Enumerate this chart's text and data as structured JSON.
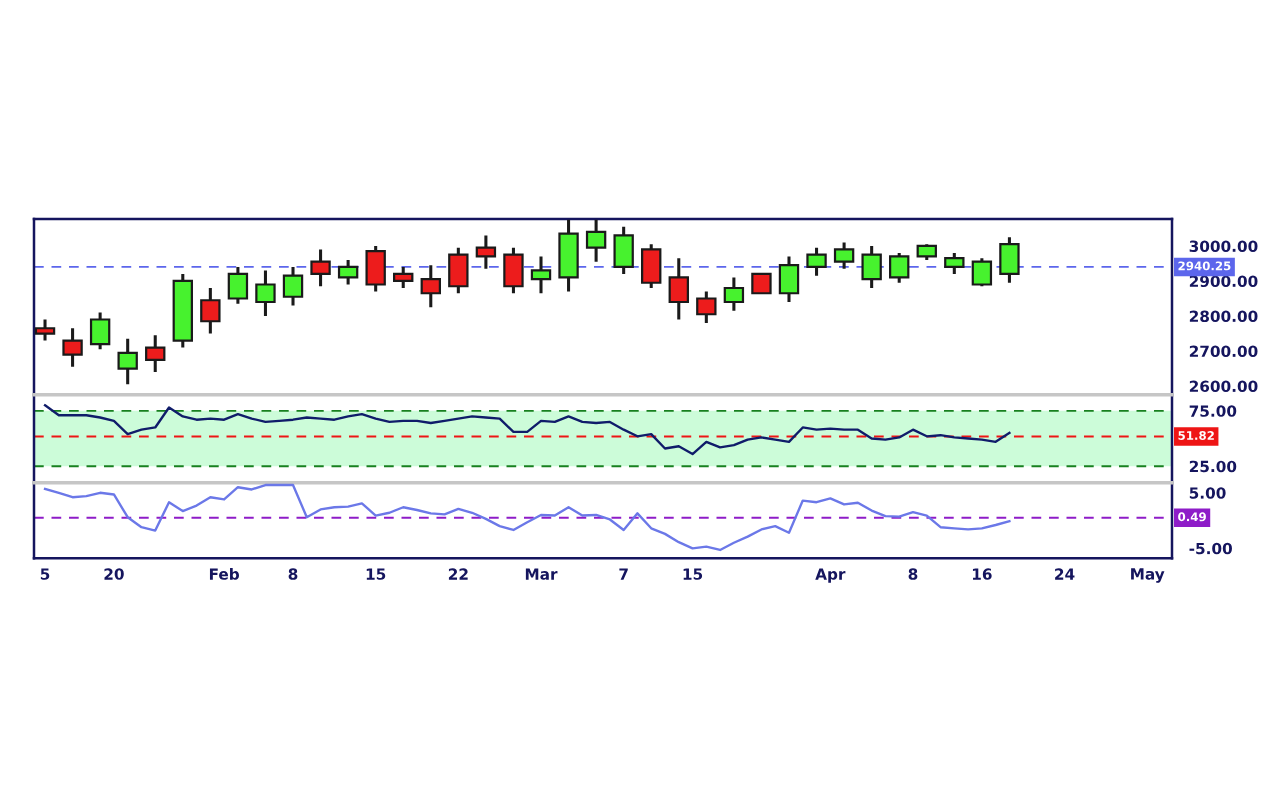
{
  "chart_data": [
    {
      "type": "candlestick",
      "categories": [
        "5",
        null,
        null,
        null,
        null,
        "20",
        null,
        null,
        null,
        null,
        null,
        null,
        null,
        "Feb",
        null,
        null,
        null,
        null,
        "8",
        null,
        null,
        null,
        null,
        null,
        "15",
        null,
        null,
        null,
        null,
        null,
        "22",
        null,
        null,
        null,
        null,
        null,
        "Mar",
        null,
        null,
        null,
        null,
        null,
        "7",
        null,
        null,
        null,
        null,
        "15",
        null,
        null,
        null,
        null,
        null,
        null,
        null,
        null,
        null,
        "Apr",
        null,
        null,
        null,
        null,
        null,
        "8",
        null,
        null,
        null,
        null,
        "16",
        null,
        null,
        null,
        null,
        null,
        "24",
        null,
        null,
        null,
        null,
        null,
        "May",
        null
      ],
      "ohlc": [
        [
          2765,
          2790,
          2730,
          2750
        ],
        null,
        [
          2730,
          2765,
          2655,
          2690
        ],
        null,
        [
          2720,
          2810,
          2705,
          2790
        ],
        null,
        [
          2650,
          2735,
          2605,
          2695
        ],
        null,
        [
          2710,
          2745,
          2640,
          2675
        ],
        null,
        [
          2730,
          2920,
          2710,
          2900
        ],
        null,
        [
          2845,
          2880,
          2750,
          2785
        ],
        null,
        [
          2850,
          2940,
          2835,
          2920
        ],
        null,
        [
          2840,
          2930,
          2800,
          2890
        ],
        null,
        [
          2855,
          2940,
          2830,
          2915
        ],
        null,
        [
          2955,
          2990,
          2885,
          2920
        ],
        null,
        [
          2910,
          2960,
          2890,
          2940
        ],
        null,
        [
          2985,
          3000,
          2870,
          2890
        ],
        null,
        [
          2920,
          2940,
          2880,
          2900
        ],
        null,
        [
          2905,
          2945,
          2825,
          2865
        ],
        null,
        [
          2975,
          2995,
          2865,
          2885
        ],
        null,
        [
          2995,
          3030,
          2935,
          2970
        ],
        null,
        [
          2975,
          2995,
          2865,
          2885
        ],
        null,
        [
          2905,
          2970,
          2865,
          2930
        ],
        null,
        [
          2910,
          3075,
          2870,
          3035
        ],
        null,
        [
          2995,
          3075,
          2955,
          3040
        ],
        null,
        [
          2940,
          3055,
          2920,
          3030
        ],
        null,
        [
          2990,
          3005,
          2880,
          2895
        ],
        null,
        [
          2910,
          2965,
          2790,
          2840
        ],
        null,
        [
          2850,
          2870,
          2780,
          2805
        ],
        null,
        [
          2840,
          2910,
          2815,
          2880
        ],
        null,
        [
          2920,
          2920,
          2865,
          2865
        ],
        null,
        [
          2865,
          2970,
          2840,
          2945
        ],
        null,
        [
          2940,
          2995,
          2915,
          2975
        ],
        null,
        [
          2955,
          3010,
          2935,
          2990
        ],
        null,
        [
          2905,
          3000,
          2880,
          2975
        ],
        null,
        [
          2910,
          2980,
          2895,
          2970
        ],
        null,
        [
          2970,
          3005,
          2960,
          3000
        ],
        null,
        [
          2940,
          2980,
          2920,
          2965
        ],
        null,
        [
          2890,
          2965,
          2885,
          2955
        ],
        null,
        [
          2920,
          3025,
          2895,
          3005
        ],
        null,
        null,
        null,
        null,
        null,
        null,
        null,
        null,
        null,
        null,
        null
      ],
      "colors": [
        "#ed1c1c",
        null,
        "#ed1c1c",
        null,
        "#47f22e",
        null,
        "#47f22e",
        null,
        "#ed1c1c",
        null,
        "#47f22e",
        null,
        "#ed1c1c",
        null,
        "#47f22e",
        null,
        "#47f22e",
        null,
        "#47f22e",
        null,
        "#ed1c1c",
        null,
        "#47f22e",
        null,
        "#ed1c1c",
        null,
        "#ed1c1c",
        null,
        "#ed1c1c",
        null,
        "#ed1c1c",
        null,
        "#ed1c1c",
        null,
        "#ed1c1c",
        null,
        "#47f22e",
        null,
        "#47f22e",
        null,
        "#47f22e",
        null,
        "#47f22e",
        null,
        "#ed1c1c",
        null,
        "#ed1c1c",
        null,
        "#ed1c1c",
        null,
        "#47f22e",
        null,
        "#ed1c1c",
        null,
        "#47f22e",
        null,
        "#47f22e",
        null,
        "#47f22e",
        null,
        "#47f22e",
        null,
        "#47f22e",
        null,
        "#47f22e",
        null,
        "#47f22e",
        null,
        "#47f22e",
        null,
        "#47f22e",
        null,
        null,
        null,
        null,
        null,
        null,
        null,
        null,
        null,
        null,
        null
      ],
      "ylim": [
        2575,
        3077
      ],
      "yticks": [
        {
          "value": 2600,
          "label": "2600.00"
        },
        {
          "value": 2700,
          "label": "2700.00"
        },
        {
          "value": 2800,
          "label": "2800.00"
        },
        {
          "value": 2900,
          "label": "2900.00"
        },
        {
          "value": 3000,
          "label": "3000.00"
        }
      ],
      "tick_labels": "y",
      "ref_lines": [
        {
          "axis": "y",
          "value": 2940.25,
          "label": "2940.25",
          "color": "#5c66ec",
          "line_style": "dashed"
        }
      ]
    },
    {
      "type": "line",
      "categories": [
        "5",
        null,
        null,
        null,
        null,
        "20",
        null,
        null,
        null,
        null,
        null,
        null,
        null,
        "Feb",
        null,
        null,
        null,
        null,
        "8",
        null,
        null,
        null,
        null,
        null,
        "15",
        null,
        null,
        null,
        null,
        null,
        "22",
        null,
        null,
        null,
        null,
        null,
        "Mar",
        null,
        null,
        null,
        null,
        null,
        "7",
        null,
        null,
        null,
        null,
        "15",
        null,
        null,
        null,
        null,
        null,
        null,
        null,
        null,
        null,
        "Apr",
        null,
        null,
        null,
        null,
        null,
        "8",
        null,
        null,
        null,
        null,
        "16",
        null,
        null,
        null,
        null,
        null,
        "24",
        null,
        null,
        null,
        null,
        null,
        "May",
        null
      ],
      "values": [
        80,
        71,
        71,
        71,
        69,
        66,
        54,
        58,
        60,
        78,
        70,
        67,
        68,
        67,
        72,
        68,
        65,
        66,
        67,
        69,
        68,
        67,
        70,
        72,
        68,
        65,
        66,
        66,
        64,
        66,
        68,
        70,
        69,
        68,
        56,
        56,
        66,
        65,
        70,
        65,
        64,
        65,
        58,
        52,
        54,
        41,
        43,
        36,
        47,
        42,
        44,
        49,
        51,
        49,
        47,
        60,
        58,
        59,
        58,
        58,
        50,
        49,
        51,
        58,
        52,
        53,
        51,
        50,
        49,
        47,
        55,
        null,
        null,
        null,
        null,
        null,
        null,
        null,
        null,
        null,
        null,
        null
      ],
      "color": "#101c6a",
      "ylim": [
        10,
        89.5
      ],
      "yticks": [
        {
          "value": 25,
          "label": "25.00"
        },
        {
          "value": 75,
          "label": "75.00"
        }
      ],
      "tick_labels": "y",
      "bands": [
        {
          "axis": "y",
          "from": 25,
          "to": 75,
          "color": "#ccfcd9"
        }
      ],
      "ref_lines": [
        {
          "axis": "y",
          "value": 75,
          "color": "#17801f",
          "line_style": "dashed"
        },
        {
          "axis": "y",
          "value": 25,
          "color": "#17801f",
          "line_style": "dashed"
        },
        {
          "axis": "y",
          "value": 51.82,
          "label": "51.82",
          "color": "#ee1515",
          "line_style": "dashed"
        }
      ]
    },
    {
      "type": "line",
      "categories": [
        "5",
        null,
        null,
        null,
        null,
        "20",
        null,
        null,
        null,
        null,
        null,
        null,
        null,
        "Feb",
        null,
        null,
        null,
        null,
        "8",
        null,
        null,
        null,
        null,
        null,
        "15",
        null,
        null,
        null,
        null,
        null,
        "22",
        null,
        null,
        null,
        null,
        null,
        "Mar",
        null,
        null,
        null,
        null,
        null,
        "7",
        null,
        null,
        null,
        null,
        "15",
        null,
        null,
        null,
        null,
        null,
        null,
        null,
        null,
        null,
        "Apr",
        null,
        null,
        null,
        null,
        null,
        "8",
        null,
        null,
        null,
        null,
        "16",
        null,
        null,
        null,
        null,
        null,
        "24",
        null,
        null,
        null,
        null,
        null,
        "May",
        null
      ],
      "values": [
        5.7,
        5.0,
        4.2,
        4.4,
        5.0,
        4.7,
        0.6,
        -1.2,
        -1.8,
        3.3,
        1.7,
        2.7,
        4.2,
        3.8,
        6.0,
        5.6,
        6.4,
        6.4,
        6.4,
        0.6,
        2.0,
        2.4,
        2.5,
        3.1,
        0.9,
        1.4,
        2.4,
        1.9,
        1.3,
        1.1,
        2.1,
        1.4,
        0.3,
        -1.0,
        -1.7,
        -0.3,
        1.0,
        0.9,
        2.4,
        0.9,
        1.0,
        0.2,
        -1.7,
        1.3,
        -1.4,
        -2.4,
        -3.9,
        -5.0,
        -4.7,
        -5.3,
        -4.0,
        -2.9,
        -1.6,
        -1.0,
        -2.2,
        3.6,
        3.3,
        4.0,
        2.9,
        3.2,
        1.8,
        0.8,
        0.7,
        1.5,
        0.9,
        -1.2,
        -1.4,
        -1.6,
        -1.4,
        -0.8,
        -0.1,
        null,
        null,
        null,
        null,
        null,
        null,
        null,
        null,
        null,
        null,
        null
      ],
      "color": "#6b78e8",
      "ylim": [
        -6.8,
        6.8
      ],
      "yticks": [
        {
          "value": -5,
          "label": "-5.00"
        },
        {
          "value": 5,
          "label": "5.00"
        }
      ],
      "ref_lines": [
        {
          "axis": "y",
          "value": 0.49,
          "label": "0.49",
          "color": "#8e1cc8",
          "line_style": "dashed"
        }
      ]
    }
  ]
}
